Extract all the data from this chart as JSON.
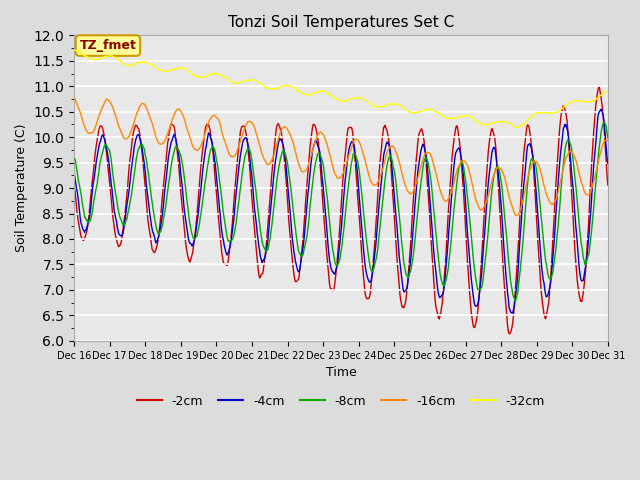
{
  "title": "Tonzi Soil Temperatures Set C",
  "xlabel": "Time",
  "ylabel": "Soil Temperature (C)",
  "ylim": [
    6.0,
    12.0
  ],
  "yticks": [
    6.0,
    6.5,
    7.0,
    7.5,
    8.0,
    8.5,
    9.0,
    9.5,
    10.0,
    10.5,
    11.0,
    11.5,
    12.0
  ],
  "bg_color": "#dcdcdc",
  "plot_bg_color": "#e8e8e8",
  "legend_labels": [
    "-2cm",
    "-4cm",
    "-8cm",
    "-16cm",
    "-32cm"
  ],
  "legend_colors": [
    "#cc0000",
    "#0000cc",
    "#00aa00",
    "#ff8800",
    "#ffff00"
  ],
  "annotation_text": "TZ_fmet",
  "annotation_bg": "#ffff99",
  "annotation_border": "#cc9900",
  "annotation_text_color": "#880000",
  "n_points": 720,
  "line_width": 1.0,
  "xtick_labels": [
    "Dec 16",
    "Dec 17",
    "Dec 18",
    "Dec 19",
    "Dec 20",
    "Dec 21",
    "Dec 22",
    "Dec 23",
    "Dec 24",
    "Dec 25",
    "Dec 26",
    "Dec 27",
    "Dec 28",
    "Dec 29",
    "Dec 30",
    "Dec 31"
  ],
  "xtick_positions": [
    0,
    48,
    96,
    144,
    192,
    240,
    288,
    336,
    384,
    432,
    480,
    528,
    576,
    624,
    672,
    720
  ]
}
